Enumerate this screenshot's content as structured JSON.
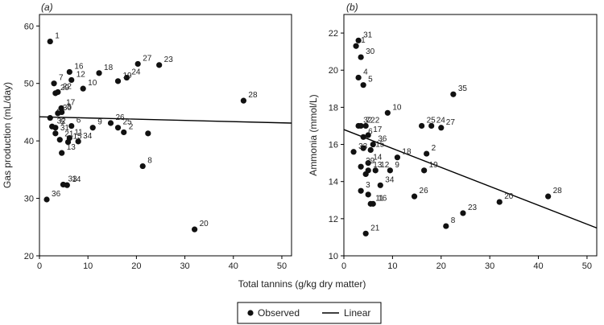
{
  "chart_data": [
    {
      "type": "scatter",
      "panel": "(a)",
      "xlabel": "",
      "ylabel": "Gas production (mL/day)",
      "xlim": [
        0,
        52
      ],
      "ylim": [
        20,
        62
      ],
      "xticks": [
        0,
        10,
        20,
        30,
        40,
        50
      ],
      "yticks": [
        20,
        30,
        40,
        50,
        60
      ],
      "points": [
        {
          "label": "1",
          "x": 2.2,
          "y": 57.3
        },
        {
          "label": "7",
          "x": 3.0,
          "y": 50.0
        },
        {
          "label": "16",
          "x": 6.2,
          "y": 52.0
        },
        {
          "label": "12",
          "x": 6.6,
          "y": 50.6
        },
        {
          "label": "10",
          "x": 9.0,
          "y": 49.1
        },
        {
          "label": "18",
          "x": 12.3,
          "y": 51.8
        },
        {
          "label": "27",
          "x": 20.3,
          "y": 53.4
        },
        {
          "label": "23",
          "x": 24.7,
          "y": 53.2
        },
        {
          "label": "24",
          "x": 18.0,
          "y": 51.0
        },
        {
          "label": "19",
          "x": 16.2,
          "y": 50.4
        },
        {
          "label": "28",
          "x": 42.1,
          "y": 47.0
        },
        {
          "label": "29",
          "x": 3.3,
          "y": 48.3
        },
        {
          "label": "22",
          "x": 3.8,
          "y": 48.5
        },
        {
          "label": "17",
          "x": 4.5,
          "y": 45.7
        },
        {
          "label": "4",
          "x": 2.2,
          "y": 44.0
        },
        {
          "label": "30",
          "x": 3.8,
          "y": 44.8
        },
        {
          "label": "3",
          "x": 4.6,
          "y": 45.0
        },
        {
          "label": "32",
          "x": 2.6,
          "y": 42.5
        },
        {
          "label": "5",
          "x": 3.3,
          "y": 42.3
        },
        {
          "label": "6",
          "x": 6.6,
          "y": 42.6
        },
        {
          "label": "31",
          "x": 3.3,
          "y": 41.3
        },
        {
          "label": "11",
          "x": 6.2,
          "y": 40.5
        },
        {
          "label": "21",
          "x": 4.2,
          "y": 40.2
        },
        {
          "label": "15",
          "x": 5.9,
          "y": 39.8
        },
        {
          "label": "34",
          "x": 8.0,
          "y": 39.9
        },
        {
          "label": "13",
          "x": 4.6,
          "y": 37.9
        },
        {
          "label": "9",
          "x": 11.0,
          "y": 42.3
        },
        {
          "label": "26",
          "x": 14.7,
          "y": 43.1
        },
        {
          "label": "25",
          "x": 16.2,
          "y": 42.3
        },
        {
          "label": "2",
          "x": 17.4,
          "y": 41.5
        },
        {
          "label": "",
          "x": 22.4,
          "y": 41.3
        },
        {
          "label": "8",
          "x": 21.3,
          "y": 35.6
        },
        {
          "label": "33",
          "x": 4.9,
          "y": 32.4
        },
        {
          "label": "14",
          "x": 5.7,
          "y": 32.3
        },
        {
          "label": "36",
          "x": 1.5,
          "y": 29.8
        },
        {
          "label": "20",
          "x": 32.0,
          "y": 24.6
        }
      ],
      "fit_line": {
        "x": [
          0,
          52
        ],
        "y": [
          44.2,
          43.1
        ]
      }
    },
    {
      "type": "scatter",
      "panel": "(b)",
      "xlabel": "",
      "ylabel": "Ammonia (mmol/L)",
      "xlim": [
        0,
        52
      ],
      "ylim": [
        10,
        23
      ],
      "xticks": [
        0,
        10,
        20,
        30,
        40,
        50
      ],
      "yticks": [
        10,
        12,
        14,
        16,
        18,
        20,
        22
      ],
      "points": [
        {
          "label": "31",
          "x": 3.0,
          "y": 21.6
        },
        {
          "label": "1",
          "x": 2.5,
          "y": 21.3
        },
        {
          "label": "30",
          "x": 3.5,
          "y": 20.7
        },
        {
          "label": "4",
          "x": 3.0,
          "y": 19.6
        },
        {
          "label": "5",
          "x": 4.0,
          "y": 19.2
        },
        {
          "label": "35",
          "x": 22.5,
          "y": 18.7
        },
        {
          "label": "10",
          "x": 9.0,
          "y": 17.7
        },
        {
          "label": "32",
          "x": 3.0,
          "y": 17.0
        },
        {
          "label": "7",
          "x": 3.5,
          "y": 17.0
        },
        {
          "label": "22",
          "x": 4.5,
          "y": 17.0
        },
        {
          "label": "25",
          "x": 16.0,
          "y": 17.0
        },
        {
          "label": "24",
          "x": 18.0,
          "y": 17.0
        },
        {
          "label": "27",
          "x": 20.0,
          "y": 16.9
        },
        {
          "label": "17",
          "x": 5.0,
          "y": 16.5
        },
        {
          "label": "6",
          "x": 4.0,
          "y": 16.4
        },
        {
          "label": "36",
          "x": 6.0,
          "y": 16.0
        },
        {
          "label": "",
          "x": 4.0,
          "y": 15.8
        },
        {
          "label": "15",
          "x": 5.5,
          "y": 15.7
        },
        {
          "label": "18",
          "x": 11.0,
          "y": 15.3
        },
        {
          "label": "2",
          "x": 17.0,
          "y": 15.5
        },
        {
          "label": "33",
          "x": 2.0,
          "y": 15.6
        },
        {
          "label": "14",
          "x": 5.0,
          "y": 15.0
        },
        {
          "label": "29",
          "x": 3.5,
          "y": 14.8
        },
        {
          "label": "9",
          "x": 9.5,
          "y": 14.6
        },
        {
          "label": "19",
          "x": 16.5,
          "y": 14.6
        },
        {
          "label": "12",
          "x": 6.5,
          "y": 14.6
        },
        {
          "label": "",
          "x": 4.5,
          "y": 14.4
        },
        {
          "label": "13",
          "x": 5.0,
          "y": 14.6
        },
        {
          "label": "34",
          "x": 7.5,
          "y": 13.8
        },
        {
          "label": "3",
          "x": 3.5,
          "y": 13.5
        },
        {
          "label": "",
          "x": 5.0,
          "y": 13.3
        },
        {
          "label": "26",
          "x": 14.5,
          "y": 13.2
        },
        {
          "label": "11",
          "x": 5.5,
          "y": 12.8
        },
        {
          "label": "16",
          "x": 6.0,
          "y": 12.8
        },
        {
          "label": "28",
          "x": 42.0,
          "y": 13.2
        },
        {
          "label": "20",
          "x": 32.0,
          "y": 12.9
        },
        {
          "label": "23",
          "x": 24.5,
          "y": 12.3
        },
        {
          "label": "8",
          "x": 21.0,
          "y": 11.6
        },
        {
          "label": "21",
          "x": 4.5,
          "y": 11.2
        }
      ],
      "fit_line": {
        "x": [
          0,
          52
        ],
        "y": [
          16.8,
          11.5
        ]
      }
    }
  ],
  "shared_xlabel": "Total tannins (g/kg dry matter)",
  "legend": {
    "observed": "Observed",
    "linear": "Linear",
    "placement": "bottom-center"
  }
}
